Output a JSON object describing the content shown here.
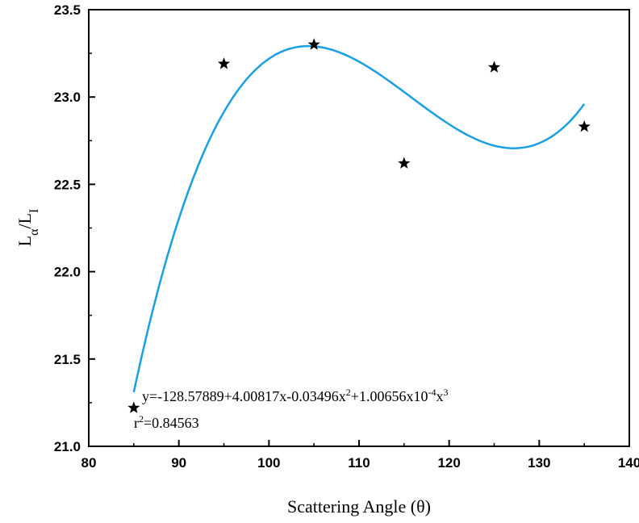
{
  "chart_data": {
    "type": "scatter",
    "xlabel": "Scattering Angle (θ)",
    "ylabel": {
      "main": "L",
      "sub1": "α",
      "sep": "/L",
      "sub2": "I"
    },
    "xlim": [
      80,
      140
    ],
    "ylim": [
      21.0,
      23.5
    ],
    "xticks": [
      "80",
      "90",
      "100",
      "110",
      "120",
      "130",
      "140"
    ],
    "yticks": [
      "21.0",
      "21.5",
      "22.0",
      "22.5",
      "23.0",
      "23.5"
    ],
    "grid": false,
    "series": [
      {
        "marker": "star",
        "color": "#000000",
        "x": [
          85,
          95,
          105,
          115,
          125,
          135
        ],
        "y": [
          21.22,
          23.19,
          23.3,
          22.62,
          23.17,
          22.83
        ]
      }
    ],
    "fit": {
      "type": "cubic",
      "color": "#1a9fe0",
      "x_range": [
        85,
        135
      ],
      "coefficients": [
        -128.57889,
        4.00817,
        -0.03496,
        0.000100656
      ]
    },
    "annotation": {
      "eq_prefix": "y=-128.57889+4.00817x-0.03496x",
      "eq_exp2": "2",
      "eq_mid": "+1.00656x10",
      "eq_exp_neg4": "-4",
      "eq_x": "x",
      "eq_exp3": "3",
      "r_label": "r",
      "r_exp": "2",
      "r_value": "=0.84563"
    }
  }
}
